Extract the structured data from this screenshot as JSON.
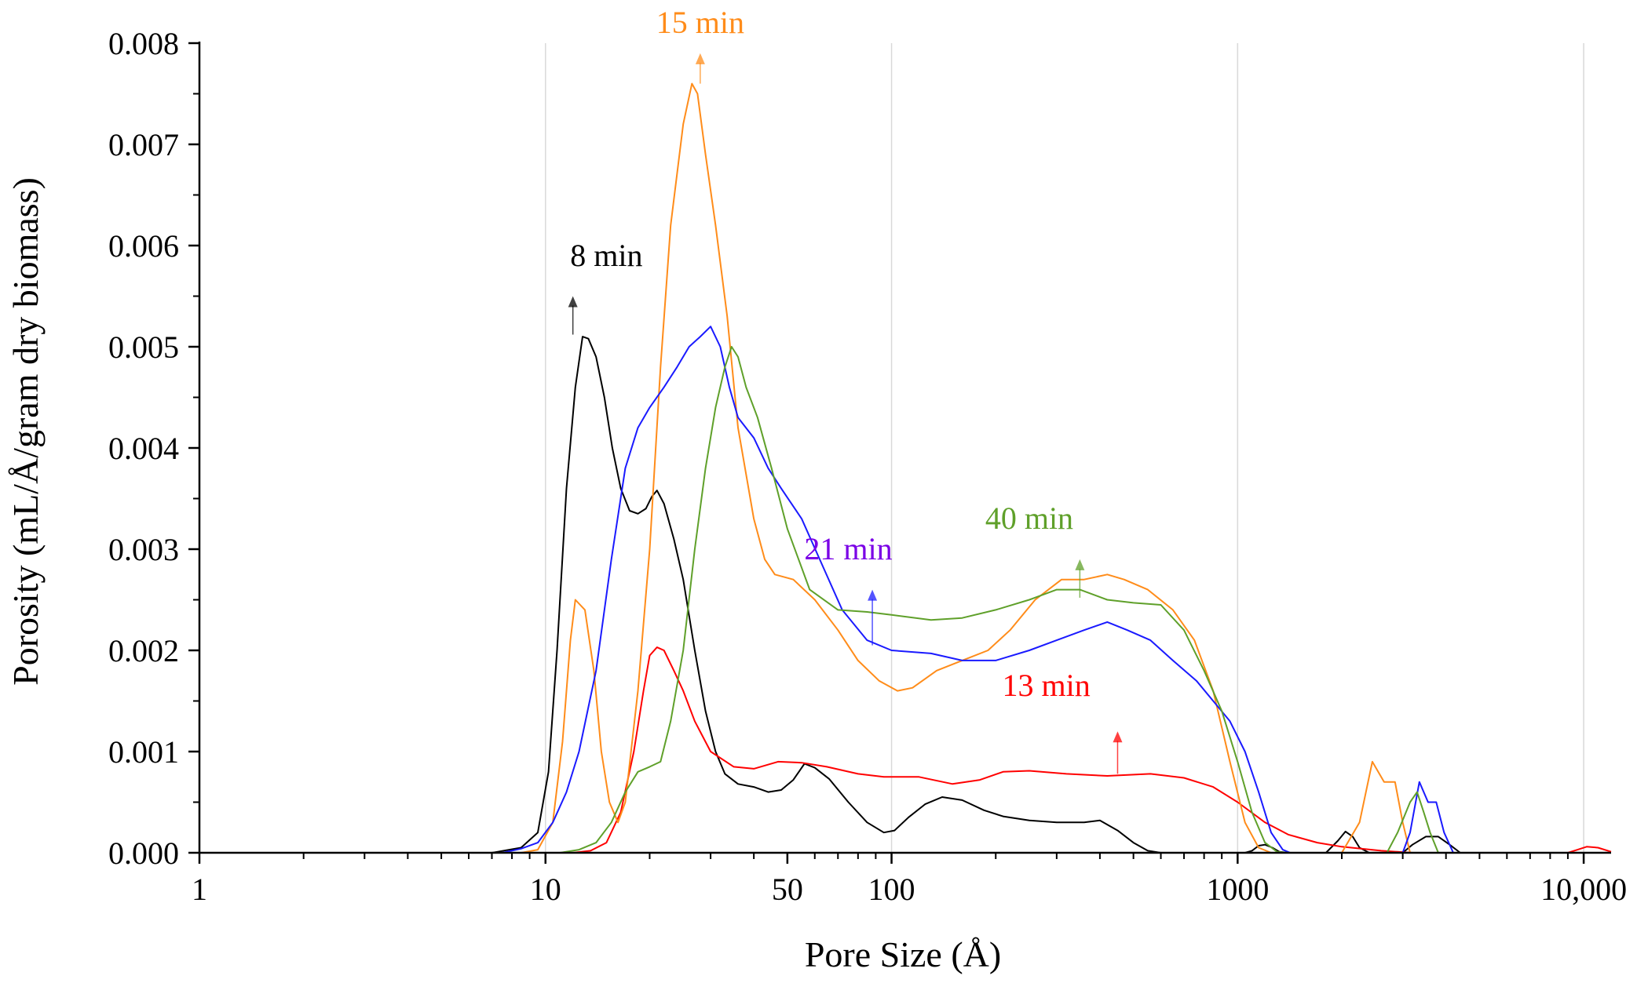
{
  "chart_data": {
    "type": "line",
    "title": "",
    "xlabel": "Pore Size (Å)",
    "ylabel": "Porosity (mL/Å/gram dry biomass)",
    "xscale": "log",
    "xlim": [
      1,
      12000
    ],
    "ylim": [
      0,
      0.008
    ],
    "grid": "vertical gridlines at 10, 100, 1000, 10000",
    "legend": "inline labels with arrows",
    "x_ticks": [
      {
        "value": 1,
        "label": "1"
      },
      {
        "value": 10,
        "label": "10"
      },
      {
        "value": 50,
        "label": "50"
      },
      {
        "value": 100,
        "label": "100"
      },
      {
        "value": 1000,
        "label": "1000"
      },
      {
        "value": 10000,
        "label": "10,000"
      }
    ],
    "y_ticks": [
      {
        "value": 0,
        "label": "0.000"
      },
      {
        "value": 0.001,
        "label": "0.001"
      },
      {
        "value": 0.002,
        "label": "0.002"
      },
      {
        "value": 0.003,
        "label": "0.003"
      },
      {
        "value": 0.004,
        "label": "0.004"
      },
      {
        "value": 0.005,
        "label": "0.005"
      },
      {
        "value": 0.006,
        "label": "0.006"
      },
      {
        "value": 0.007,
        "label": "0.007"
      },
      {
        "value": 0.008,
        "label": "0.008"
      }
    ],
    "series": [
      {
        "name": "8 min",
        "color": "#000000",
        "label": "8 min",
        "label_x": 15,
        "label_y": 0.0058,
        "arrow_x": 12,
        "arrow_y_from": 0.00512,
        "arrow_y_to": 0.0055,
        "points": [
          [
            3,
            0
          ],
          [
            7,
            0
          ],
          [
            8.5,
            5e-05
          ],
          [
            9.5,
            0.0002
          ],
          [
            10.2,
            0.0008
          ],
          [
            10.8,
            0.002
          ],
          [
            11.5,
            0.0036
          ],
          [
            12.2,
            0.0046
          ],
          [
            12.8,
            0.0051
          ],
          [
            13.3,
            0.00508
          ],
          [
            14,
            0.0049
          ],
          [
            14.8,
            0.0045
          ],
          [
            15.6,
            0.004
          ],
          [
            16.5,
            0.0036
          ],
          [
            17.5,
            0.00338
          ],
          [
            18.5,
            0.00335
          ],
          [
            19.5,
            0.0034
          ],
          [
            20.3,
            0.00352
          ],
          [
            21,
            0.00358
          ],
          [
            22,
            0.00345
          ],
          [
            23.5,
            0.0031
          ],
          [
            25,
            0.0027
          ],
          [
            27,
            0.002
          ],
          [
            29,
            0.0014
          ],
          [
            31,
            0.001
          ],
          [
            33,
            0.00078
          ],
          [
            36,
            0.00068
          ],
          [
            40,
            0.00065
          ],
          [
            44,
            0.0006
          ],
          [
            48,
            0.00062
          ],
          [
            52,
            0.00072
          ],
          [
            56,
            0.00088
          ],
          [
            60,
            0.00084
          ],
          [
            66,
            0.00073
          ],
          [
            75,
            0.0005
          ],
          [
            85,
            0.0003
          ],
          [
            95,
            0.0002
          ],
          [
            102,
            0.00022
          ],
          [
            112,
            0.00035
          ],
          [
            125,
            0.00048
          ],
          [
            140,
            0.00055
          ],
          [
            160,
            0.00052
          ],
          [
            185,
            0.00042
          ],
          [
            210,
            0.00036
          ],
          [
            250,
            0.00032
          ],
          [
            300,
            0.0003
          ],
          [
            360,
            0.0003
          ],
          [
            400,
            0.00032
          ],
          [
            450,
            0.00022
          ],
          [
            500,
            0.0001
          ],
          [
            550,
            2e-05
          ],
          [
            600,
            0
          ],
          [
            1050,
            0
          ],
          [
            1100,
            2e-05
          ],
          [
            1150,
            7e-05
          ],
          [
            1200,
            8e-05
          ],
          [
            1260,
            5e-05
          ],
          [
            1320,
            1e-05
          ],
          [
            1400,
            0
          ],
          [
            1800,
            0
          ],
          [
            1950,
            0.00012
          ],
          [
            2050,
            0.00021
          ],
          [
            2150,
            0.00016
          ],
          [
            2250,
            5e-05
          ],
          [
            2400,
            0
          ],
          [
            3000,
            0
          ],
          [
            3200,
            8e-05
          ],
          [
            3500,
            0.00016
          ],
          [
            3800,
            0.00016
          ],
          [
            4100,
            8e-05
          ],
          [
            4400,
            0
          ],
          [
            12000,
            0
          ]
        ]
      },
      {
        "name": "13 min",
        "color": "#ff0000",
        "label": "13 min",
        "label_x": 280,
        "label_y": 0.00155,
        "arrow_x": 450,
        "arrow_y_from": 0.00078,
        "arrow_y_to": 0.0012,
        "points": [
          [
            3,
            0
          ],
          [
            12,
            0
          ],
          [
            13.5,
            2e-05
          ],
          [
            15,
            0.0001
          ],
          [
            16.5,
            0.0004
          ],
          [
            18,
            0.001
          ],
          [
            19.2,
            0.0016
          ],
          [
            20,
            0.00195
          ],
          [
            21,
            0.00203
          ],
          [
            22,
            0.002
          ],
          [
            23.5,
            0.0018
          ],
          [
            25,
            0.0016
          ],
          [
            27,
            0.0013
          ],
          [
            30,
            0.001
          ],
          [
            35,
            0.00085
          ],
          [
            40,
            0.00083
          ],
          [
            47,
            0.0009
          ],
          [
            55,
            0.00089
          ],
          [
            65,
            0.00085
          ],
          [
            80,
            0.00078
          ],
          [
            95,
            0.00075
          ],
          [
            120,
            0.00075
          ],
          [
            150,
            0.00068
          ],
          [
            180,
            0.00072
          ],
          [
            210,
            0.0008
          ],
          [
            250,
            0.00081
          ],
          [
            320,
            0.00078
          ],
          [
            420,
            0.00076
          ],
          [
            560,
            0.00078
          ],
          [
            700,
            0.00074
          ],
          [
            850,
            0.00065
          ],
          [
            1000,
            0.0005
          ],
          [
            1200,
            0.0003
          ],
          [
            1400,
            0.00018
          ],
          [
            1700,
            0.0001
          ],
          [
            2000,
            6e-05
          ],
          [
            2600,
            2e-05
          ],
          [
            3200,
            0
          ],
          [
            9000,
            0
          ],
          [
            9600,
            3e-05
          ],
          [
            10200,
            6e-05
          ],
          [
            11000,
            5e-05
          ],
          [
            12000,
            1e-05
          ]
        ]
      },
      {
        "name": "15 min",
        "color": "#ff8c1a",
        "label": "15 min",
        "label_x": 28,
        "label_y": 0.0081,
        "arrow_x": 28,
        "arrow_y_from": 0.0076,
        "arrow_y_to": 0.0079,
        "points": [
          [
            3,
            0
          ],
          [
            8.5,
            0
          ],
          [
            9.5,
            3e-05
          ],
          [
            10.5,
            0.0003
          ],
          [
            11.2,
            0.0011
          ],
          [
            11.8,
            0.0021
          ],
          [
            12.2,
            0.0025
          ],
          [
            13,
            0.0024
          ],
          [
            13.8,
            0.0018
          ],
          [
            14.5,
            0.001
          ],
          [
            15.3,
            0.0005
          ],
          [
            16.2,
            0.0003
          ],
          [
            17,
            0.0005
          ],
          [
            18.5,
            0.0016
          ],
          [
            20,
            0.003
          ],
          [
            21.5,
            0.0048
          ],
          [
            23,
            0.0062
          ],
          [
            25,
            0.0072
          ],
          [
            26.5,
            0.0076
          ],
          [
            27.5,
            0.0075
          ],
          [
            29,
            0.0069
          ],
          [
            31,
            0.0062
          ],
          [
            33.5,
            0.0053
          ],
          [
            36,
            0.0042
          ],
          [
            40,
            0.0033
          ],
          [
            43,
            0.0029
          ],
          [
            46,
            0.00275
          ],
          [
            52,
            0.0027
          ],
          [
            60,
            0.0025
          ],
          [
            70,
            0.0022
          ],
          [
            80,
            0.0019
          ],
          [
            92,
            0.0017
          ],
          [
            104,
            0.0016
          ],
          [
            115,
            0.00163
          ],
          [
            135,
            0.0018
          ],
          [
            160,
            0.0019
          ],
          [
            190,
            0.002
          ],
          [
            220,
            0.0022
          ],
          [
            260,
            0.0025
          ],
          [
            310,
            0.0027
          ],
          [
            360,
            0.0027
          ],
          [
            420,
            0.00275
          ],
          [
            470,
            0.0027
          ],
          [
            550,
            0.0026
          ],
          [
            650,
            0.0024
          ],
          [
            750,
            0.0021
          ],
          [
            850,
            0.0016
          ],
          [
            950,
            0.0009
          ],
          [
            1050,
            0.0003
          ],
          [
            1150,
            5e-05
          ],
          [
            1250,
            0
          ],
          [
            2000,
            0
          ],
          [
            2250,
            0.0003
          ],
          [
            2450,
            0.0009
          ],
          [
            2650,
            0.0007
          ],
          [
            2850,
            0.0007
          ],
          [
            3000,
            0.0003
          ],
          [
            3150,
            0
          ],
          [
            12000,
            0
          ]
        ]
      },
      {
        "name": "21 min",
        "color": "#1a1aff",
        "label": "21 min",
        "label_x": 75,
        "label_y": 0.0029,
        "arrow_x": 88,
        "arrow_y_from": 0.00205,
        "arrow_y_to": 0.0026,
        "points": [
          [
            3,
            0
          ],
          [
            7.5,
            0
          ],
          [
            8.5,
            4e-05
          ],
          [
            9.5,
            0.0001
          ],
          [
            10.5,
            0.0003
          ],
          [
            11.5,
            0.0006
          ],
          [
            12.5,
            0.001
          ],
          [
            14,
            0.0018
          ],
          [
            15.5,
            0.0029
          ],
          [
            17,
            0.0038
          ],
          [
            18.5,
            0.0042
          ],
          [
            20,
            0.0044
          ],
          [
            22,
            0.0046
          ],
          [
            24,
            0.0048
          ],
          [
            26,
            0.005
          ],
          [
            28,
            0.0051
          ],
          [
            30,
            0.0052
          ],
          [
            32,
            0.005
          ],
          [
            34,
            0.0046
          ],
          [
            36,
            0.0043
          ],
          [
            40,
            0.0041
          ],
          [
            44,
            0.0038
          ],
          [
            48,
            0.0036
          ],
          [
            55,
            0.0033
          ],
          [
            62,
            0.0029
          ],
          [
            72,
            0.0024
          ],
          [
            85,
            0.0021
          ],
          [
            100,
            0.002
          ],
          [
            130,
            0.00197
          ],
          [
            160,
            0.0019
          ],
          [
            200,
            0.0019
          ],
          [
            250,
            0.002
          ],
          [
            300,
            0.0021
          ],
          [
            360,
            0.0022
          ],
          [
            420,
            0.00228
          ],
          [
            480,
            0.0022
          ],
          [
            560,
            0.0021
          ],
          [
            650,
            0.0019
          ],
          [
            760,
            0.0017
          ],
          [
            850,
            0.0015
          ],
          [
            950,
            0.0013
          ],
          [
            1050,
            0.001
          ],
          [
            1150,
            0.0006
          ],
          [
            1250,
            0.0002
          ],
          [
            1350,
            3e-05
          ],
          [
            1420,
            0
          ],
          [
            3000,
            0
          ],
          [
            3150,
            0.0002
          ],
          [
            3350,
            0.0007
          ],
          [
            3550,
            0.0005
          ],
          [
            3750,
            0.0005
          ],
          [
            3950,
            0.0002
          ],
          [
            4200,
            0
          ],
          [
            12000,
            0
          ]
        ]
      },
      {
        "name": "40 min",
        "color": "#5fa02a",
        "label": "40 min",
        "label_x": 250,
        "label_y": 0.0032,
        "arrow_x": 350,
        "arrow_y_from": 0.00252,
        "arrow_y_to": 0.0029,
        "points": [
          [
            3,
            0
          ],
          [
            11,
            0
          ],
          [
            12.5,
            3e-05
          ],
          [
            14,
            0.0001
          ],
          [
            15.5,
            0.0003
          ],
          [
            17,
            0.0006
          ],
          [
            18.5,
            0.0008
          ],
          [
            20,
            0.00085
          ],
          [
            21.5,
            0.0009
          ],
          [
            23,
            0.0013
          ],
          [
            25,
            0.002
          ],
          [
            27,
            0.003
          ],
          [
            29,
            0.0038
          ],
          [
            31,
            0.0044
          ],
          [
            33,
            0.0048
          ],
          [
            34.5,
            0.005
          ],
          [
            36,
            0.0049
          ],
          [
            38,
            0.0046
          ],
          [
            41,
            0.0043
          ],
          [
            45,
            0.0038
          ],
          [
            50,
            0.0032
          ],
          [
            58,
            0.0026
          ],
          [
            70,
            0.0024
          ],
          [
            85,
            0.00238
          ],
          [
            100,
            0.00235
          ],
          [
            130,
            0.0023
          ],
          [
            160,
            0.00232
          ],
          [
            200,
            0.0024
          ],
          [
            250,
            0.0025
          ],
          [
            300,
            0.0026
          ],
          [
            350,
            0.0026
          ],
          [
            420,
            0.0025
          ],
          [
            500,
            0.00247
          ],
          [
            600,
            0.00245
          ],
          [
            700,
            0.0022
          ],
          [
            800,
            0.0018
          ],
          [
            900,
            0.0014
          ],
          [
            1000,
            0.0009
          ],
          [
            1100,
            0.0004
          ],
          [
            1200,
            0.0001
          ],
          [
            1300,
            1e-05
          ],
          [
            1400,
            0
          ],
          [
            2700,
            0
          ],
          [
            2900,
            0.0002
          ],
          [
            3150,
            0.0005
          ],
          [
            3300,
            0.0006
          ],
          [
            3450,
            0.0004
          ],
          [
            3600,
            0.0002
          ],
          [
            3800,
            0
          ],
          [
            12000,
            0
          ]
        ]
      }
    ]
  }
}
